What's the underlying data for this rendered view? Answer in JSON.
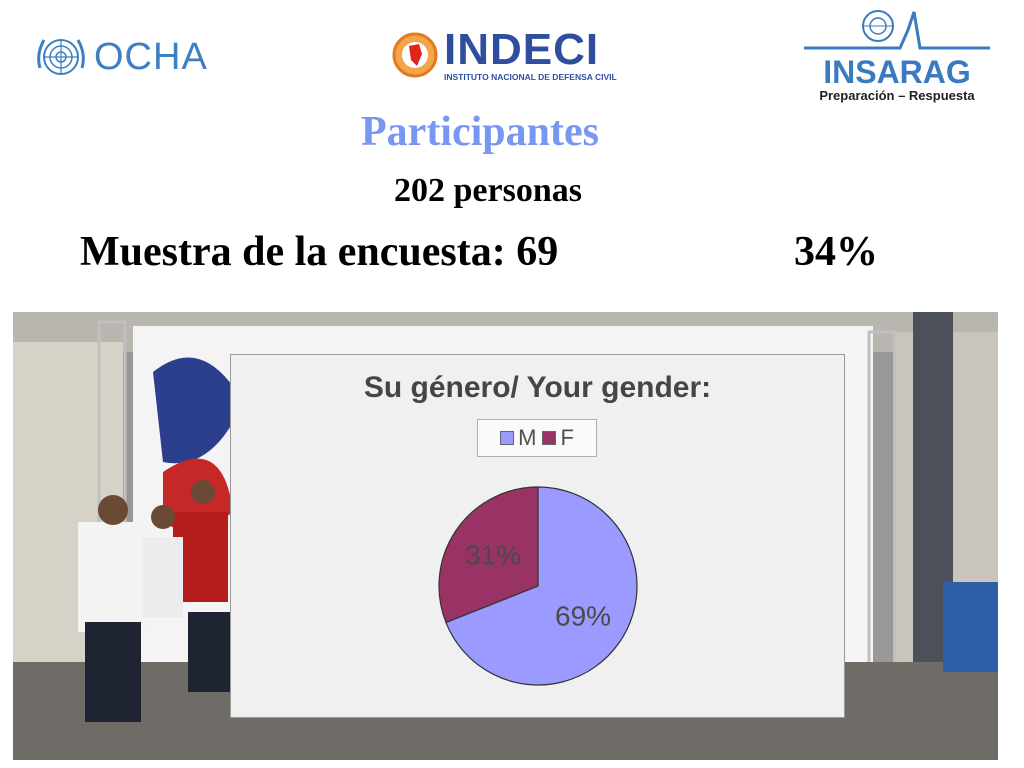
{
  "logos": {
    "ocha": "OCHA",
    "indeci_name": "INDECI",
    "indeci_sub": "INSTITUTO NACIONAL DE DEFENSA CIVIL",
    "insarag_name": "INSARAG",
    "insarag_sub": "Preparación – Respuesta"
  },
  "slide": {
    "title": "Participantes",
    "count": "202 personas",
    "sample": "Muestra de la encuesta: 69",
    "sample_pct": "34%"
  },
  "colors": {
    "M": "#9b9bff",
    "F": "#993366",
    "title": "#7897f2"
  },
  "chart_data": {
    "type": "pie",
    "title": "Su género/ Your gender:",
    "legend_position": "top",
    "slices": [
      {
        "label": "M",
        "value": 69,
        "display": "69%"
      },
      {
        "label": "F",
        "value": 31,
        "display": "31%"
      }
    ]
  }
}
